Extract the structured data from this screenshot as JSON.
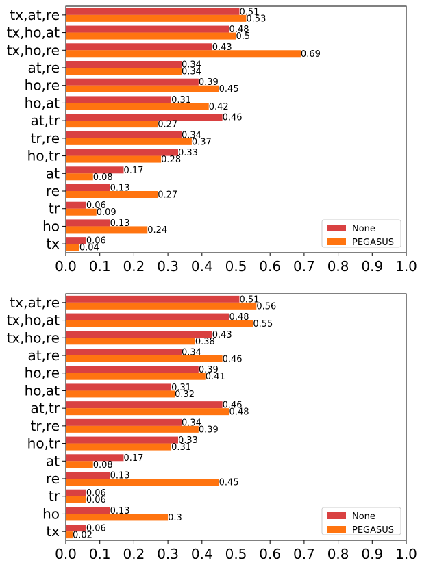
{
  "chart_data": [
    {
      "type": "bar",
      "orientation": "horizontal",
      "categories": [
        "tx,at,re",
        "tx,ho,at",
        "tx,ho,re",
        "at,re",
        "ho,re",
        "ho,at",
        "at,tr",
        "tr,re",
        "ho,tr",
        "at",
        "re",
        "tr",
        "ho",
        "tx"
      ],
      "series": [
        {
          "name": "None",
          "color": "#d94141",
          "values": [
            0.51,
            0.48,
            0.43,
            0.34,
            0.39,
            0.31,
            0.46,
            0.34,
            0.33,
            0.17,
            0.13,
            0.06,
            0.13,
            0.06
          ],
          "labels": [
            "0.51",
            "0.48",
            "0.43",
            "0.34",
            "0.39",
            "0.31",
            "0.46",
            "0.34",
            "0.33",
            "0.17",
            "0.13",
            "0.06",
            "0.13",
            "0.06"
          ]
        },
        {
          "name": "PEGASUS",
          "color": "#ff7410",
          "values": [
            0.53,
            0.5,
            0.69,
            0.34,
            0.45,
            0.42,
            0.27,
            0.37,
            0.28,
            0.08,
            0.27,
            0.09,
            0.24,
            0.04
          ],
          "labels": [
            "0.53",
            "0.5",
            "0.69",
            "0.34",
            "0.45",
            "0.42",
            "0.27",
            "0.37",
            "0.28",
            "0.08",
            "0.27",
            "0.09",
            "0.24",
            "0.04"
          ]
        }
      ],
      "xlim": [
        0,
        1.0
      ],
      "xticks": [
        "0.0",
        "0.1",
        "0.2",
        "0.3",
        "0.4",
        "0.5",
        "0.6",
        "0.7",
        "0.8",
        "0.9",
        "1.0"
      ],
      "legend_position": "bottom-right",
      "title": "",
      "xlabel": "",
      "ylabel": ""
    },
    {
      "type": "bar",
      "orientation": "horizontal",
      "categories": [
        "tx,at,re",
        "tx,ho,at",
        "tx,ho,re",
        "at,re",
        "ho,re",
        "ho,at",
        "at,tr",
        "tr,re",
        "ho,tr",
        "at",
        "re",
        "tr",
        "ho",
        "tx"
      ],
      "series": [
        {
          "name": "None",
          "color": "#d94141",
          "values": [
            0.51,
            0.48,
            0.43,
            0.34,
            0.39,
            0.31,
            0.46,
            0.34,
            0.33,
            0.17,
            0.13,
            0.06,
            0.13,
            0.06
          ],
          "labels": [
            "0.51",
            "0.48",
            "0.43",
            "0.34",
            "0.39",
            "0.31",
            "0.46",
            "0.34",
            "0.33",
            "0.17",
            "0.13",
            "0.06",
            "0.13",
            "0.06"
          ]
        },
        {
          "name": "PEGASUS",
          "color": "#ff7410",
          "values": [
            0.56,
            0.55,
            0.38,
            0.46,
            0.41,
            0.32,
            0.48,
            0.39,
            0.31,
            0.08,
            0.45,
            0.06,
            0.3,
            0.02
          ],
          "labels": [
            "0.56",
            "0.55",
            "0.38",
            "0.46",
            "0.41",
            "0.32",
            "0.48",
            "0.39",
            "0.31",
            "0.08",
            "0.45",
            "0.06",
            "0.3",
            "0.02"
          ]
        }
      ],
      "xlim": [
        0,
        1.0
      ],
      "xticks": [
        "0.0",
        "0.1",
        "0.2",
        "0.3",
        "0.4",
        "0.5",
        "0.6",
        "0.7",
        "0.8",
        "0.9",
        "1.0"
      ],
      "legend_position": "bottom-right",
      "title": "",
      "xlabel": "",
      "ylabel": ""
    }
  ]
}
